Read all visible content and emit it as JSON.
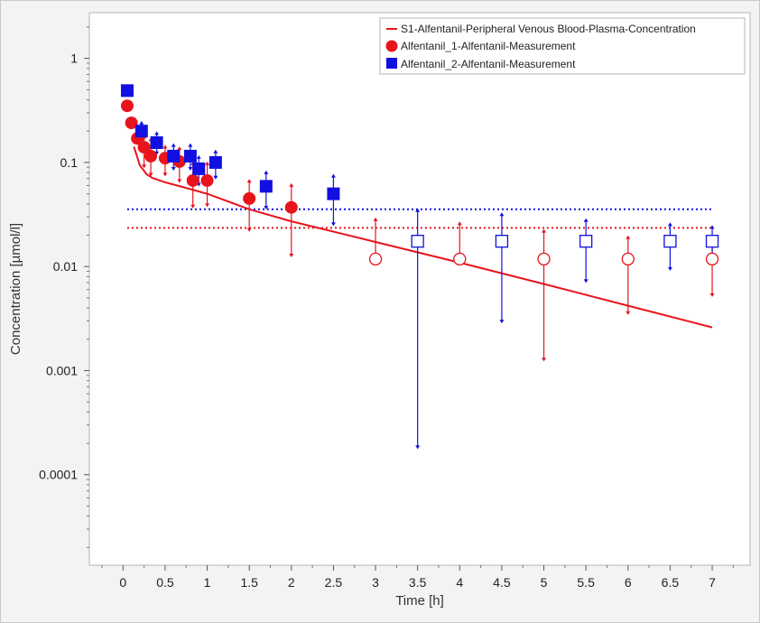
{
  "chart_data": {
    "type": "scatter",
    "xlabel": "Time [h]",
    "ylabel": "Concentration [µmol/l]",
    "xlim": [
      -0.4,
      7.45
    ],
    "ylim": [
      1.35e-05,
      2.75
    ],
    "y_scale": "log",
    "x_ticks": [
      0,
      0.5,
      1,
      1.5,
      2,
      2.5,
      3,
      3.5,
      4,
      4.5,
      5,
      5.5,
      6,
      6.5,
      7
    ],
    "x_tick_labels": [
      "0",
      "0.5",
      "1",
      "1.5",
      "2",
      "2.5",
      "3",
      "3.5",
      "4",
      "4.5",
      "5",
      "5.5",
      "6",
      "6.5",
      "7"
    ],
    "y_ticks": [
      0.0001,
      0.001,
      0.01,
      0.1,
      1
    ],
    "y_tick_labels": [
      "0.0001",
      "0.001",
      "0.01",
      "0.1",
      "1"
    ],
    "legend_position": "top-right",
    "grid": false,
    "colors": {
      "red": "#e8141c",
      "blue": "#1010e0",
      "plot_bg": "#ffffff",
      "frame_bg": "#f3f3f3"
    },
    "series": [
      {
        "name": "S1-Alfentanil-Peripheral Venous Blood-Plasma-Concentration",
        "kind": "line",
        "color": "#e8141c",
        "x": [
          0.13,
          0.2,
          0.28,
          0.35,
          0.5,
          0.75,
          1.0,
          1.5,
          2.0,
          3.0,
          4.0,
          5.0,
          6.0,
          7.0
        ],
        "y": [
          0.142,
          0.094,
          0.077,
          0.071,
          0.0645,
          0.057,
          0.05,
          0.0355,
          0.0272,
          0.0172,
          0.0109,
          0.0068,
          0.0042,
          0.0026
        ]
      },
      {
        "name": "Alfentanil_1-Alfentanil-Measurement",
        "kind": "marker",
        "marker": "circle",
        "color": "#e8141c",
        "lloq": 0.0235,
        "points": [
          {
            "x": 0.05,
            "y": 0.35,
            "lo": null,
            "hi": null,
            "below_lloq": false
          },
          {
            "x": 0.1,
            "y": 0.24,
            "lo": null,
            "hi": null,
            "below_lloq": false
          },
          {
            "x": 0.17,
            "y": 0.17,
            "lo": null,
            "hi": null,
            "below_lloq": false
          },
          {
            "x": 0.25,
            "y": 0.14,
            "lo": 0.09,
            "hi": 0.18,
            "below_lloq": false
          },
          {
            "x": 0.33,
            "y": 0.115,
            "lo": 0.075,
            "hi": 0.17,
            "below_lloq": false
          },
          {
            "x": 0.5,
            "y": 0.11,
            "lo": 0.075,
            "hi": 0.145,
            "below_lloq": false
          },
          {
            "x": 0.67,
            "y": 0.102,
            "lo": 0.065,
            "hi": 0.14,
            "below_lloq": false
          },
          {
            "x": 0.83,
            "y": 0.067,
            "lo": 0.037,
            "hi": 0.1,
            "below_lloq": false
          },
          {
            "x": 1.0,
            "y": 0.067,
            "lo": 0.038,
            "hi": 0.1,
            "below_lloq": false
          },
          {
            "x": 1.5,
            "y": 0.045,
            "lo": 0.022,
            "hi": 0.068,
            "below_lloq": false
          },
          {
            "x": 2.0,
            "y": 0.037,
            "lo": 0.0125,
            "hi": 0.062,
            "below_lloq": false
          },
          {
            "x": 3.0,
            "y": 0.0118,
            "lo": 0.0118,
            "hi": 0.029,
            "below_lloq": true
          },
          {
            "x": 4.0,
            "y": 0.0118,
            "lo": 0.0118,
            "hi": 0.0265,
            "below_lloq": true
          },
          {
            "x": 5.0,
            "y": 0.0118,
            "lo": 0.00125,
            "hi": 0.0225,
            "below_lloq": true
          },
          {
            "x": 6.0,
            "y": 0.0118,
            "lo": 0.0035,
            "hi": 0.0195,
            "below_lloq": true
          },
          {
            "x": 7.0,
            "y": 0.0118,
            "lo": 0.0052,
            "hi": 0.018,
            "below_lloq": true
          }
        ]
      },
      {
        "name": "Alfentanil_2-Alfentanil-Measurement",
        "kind": "marker",
        "marker": "square",
        "color": "#1010e0",
        "lloq": 0.0355,
        "points": [
          {
            "x": 0.05,
            "y": 0.49,
            "lo": null,
            "hi": null,
            "below_lloq": false
          },
          {
            "x": 0.22,
            "y": 0.2,
            "lo": 0.16,
            "hi": 0.245,
            "below_lloq": false
          },
          {
            "x": 0.4,
            "y": 0.155,
            "lo": 0.12,
            "hi": 0.195,
            "below_lloq": false
          },
          {
            "x": 0.6,
            "y": 0.115,
            "lo": 0.085,
            "hi": 0.15,
            "below_lloq": false
          },
          {
            "x": 0.8,
            "y": 0.115,
            "lo": 0.085,
            "hi": 0.15,
            "below_lloq": false
          },
          {
            "x": 0.9,
            "y": 0.087,
            "lo": 0.06,
            "hi": 0.115,
            "below_lloq": false
          },
          {
            "x": 1.1,
            "y": 0.1,
            "lo": 0.07,
            "hi": 0.13,
            "below_lloq": false
          },
          {
            "x": 1.7,
            "y": 0.059,
            "lo": 0.036,
            "hi": 0.082,
            "below_lloq": false
          },
          {
            "x": 2.5,
            "y": 0.05,
            "lo": 0.025,
            "hi": 0.076,
            "below_lloq": false
          },
          {
            "x": 3.5,
            "y": 0.0175,
            "lo": 0.00018,
            "hi": 0.0355,
            "below_lloq": true
          },
          {
            "x": 4.5,
            "y": 0.0175,
            "lo": 0.0029,
            "hi": 0.0325,
            "below_lloq": true
          },
          {
            "x": 5.5,
            "y": 0.0175,
            "lo": 0.0071,
            "hi": 0.0285,
            "below_lloq": true
          },
          {
            "x": 6.5,
            "y": 0.0175,
            "lo": 0.0093,
            "hi": 0.026,
            "below_lloq": true
          },
          {
            "x": 7.0,
            "y": 0.0175,
            "lo": 0.011,
            "hi": 0.0245,
            "below_lloq": true
          }
        ]
      }
    ]
  }
}
